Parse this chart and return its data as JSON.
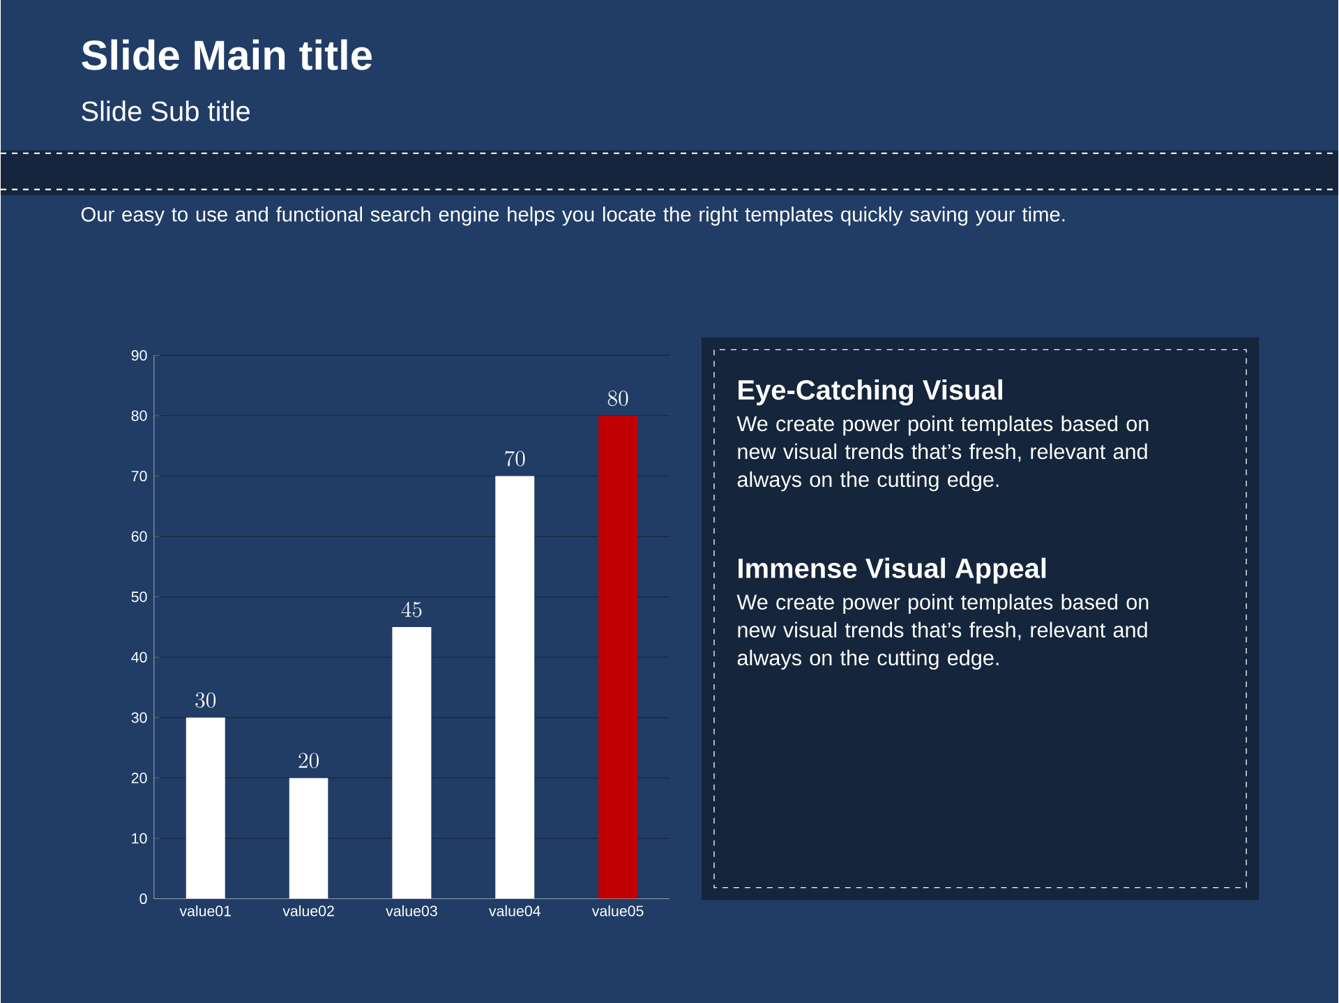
{
  "chart_data": [
    {
      "type": "bar",
      "title": "Slide Main title",
      "subtitle": "Slide Sub title",
      "annotations": [
        "Our easy to use and functional search engine helps you locate the right templates quickly saving your time."
      ],
      "categories": [
        "value01",
        "value02",
        "value03",
        "value04",
        "value05"
      ],
      "values": [
        30,
        20,
        45,
        70,
        80
      ],
      "colors": [
        "#ffffff",
        "#ffffff",
        "#ffffff",
        "#ffffff",
        "#c00000"
      ],
      "ylim": [
        0,
        90
      ],
      "yticks": [
        0,
        10,
        20,
        30,
        40,
        50,
        60,
        70,
        80,
        90
      ],
      "grid": "y",
      "data_labels": true
    },
    {
      "type": "other",
      "annotations": [
        "Eye-Catching Visual",
        "We create power point templates based on new visual trends that’s fresh, relevant and always on the cutting edge.",
        "Immense Visual Appeal",
        "We create power point templates based on new visual trends that’s fresh, relevant and always on the cutting edge."
      ]
    }
  ]
}
